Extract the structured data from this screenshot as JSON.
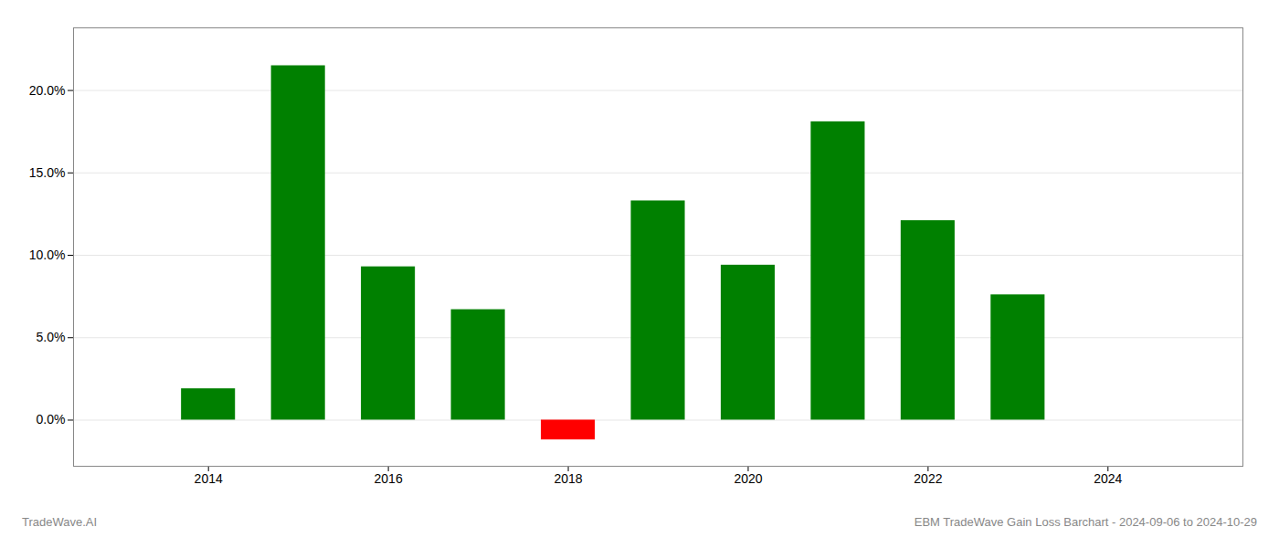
{
  "chart_data": {
    "type": "bar",
    "x": [
      2014,
      2015,
      2016,
      2017,
      2018,
      2019,
      2020,
      2021,
      2022,
      2023
    ],
    "values": [
      0.019,
      0.215,
      0.093,
      0.067,
      -0.012,
      0.133,
      0.094,
      0.181,
      0.121,
      0.076
    ],
    "colors": [
      "#008000",
      "#008000",
      "#008000",
      "#008000",
      "#ff0000",
      "#008000",
      "#008000",
      "#008000",
      "#008000",
      "#008000"
    ],
    "xlim": [
      2012.5,
      2025.5
    ],
    "xticks": [
      2014,
      2016,
      2018,
      2020,
      2022,
      2024
    ],
    "ylim": [
      -0.028,
      0.238
    ],
    "yticks": [
      {
        "value": 0.0,
        "label": "0.0%"
      },
      {
        "value": 0.05,
        "label": "5.0%"
      },
      {
        "value": 0.1,
        "label": "10.0%"
      },
      {
        "value": 0.15,
        "label": "15.0%"
      },
      {
        "value": 0.2,
        "label": "20.0%"
      }
    ],
    "grid": true,
    "annotations": [
      "TradeWave.AI",
      "EBM TradeWave Gain Loss Barchart - 2024-09-06 to 2024-10-29"
    ]
  }
}
